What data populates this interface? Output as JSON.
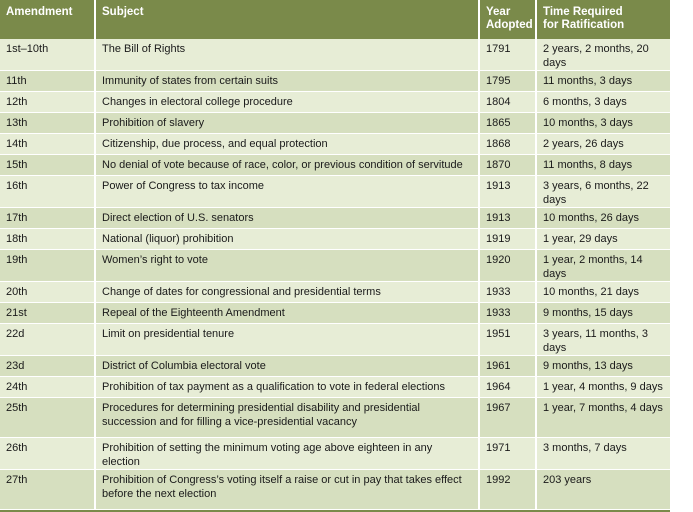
{
  "header": {
    "amendment": "Amendment",
    "subject": "Subject",
    "year_line1": "Year",
    "year_line2": "Adopted",
    "time_line1": "Time Required",
    "time_line2": "for Ratification"
  },
  "rows": [
    {
      "amendment": "1st–10th",
      "subject": "The Bill of Rights",
      "year": "1791",
      "time": "2 years, 2 months, 20 days"
    },
    {
      "amendment": "11th",
      "subject": "Immunity of states from certain suits",
      "year": "1795",
      "time": "11 months, 3 days"
    },
    {
      "amendment": "12th",
      "subject": "Changes in electoral college procedure",
      "year": "1804",
      "time": "6 months, 3 days"
    },
    {
      "amendment": "13th",
      "subject": "Prohibition of slavery",
      "year": "1865",
      "time": "10 months, 3 days"
    },
    {
      "amendment": "14th",
      "subject": "Citizenship, due process, and equal protection",
      "year": "1868",
      "time": "2 years, 26 days"
    },
    {
      "amendment": "15th",
      "subject": "No denial of vote because of race, color, or previous condition of servitude",
      "year": "1870",
      "time": "11 months, 8 days"
    },
    {
      "amendment": "16th",
      "subject": "Power of Congress to tax income",
      "year": "1913",
      "time": "3 years, 6 months, 22 days"
    },
    {
      "amendment": "17th",
      "subject": "Direct election of U.S. senators",
      "year": "1913",
      "time": "10 months, 26 days"
    },
    {
      "amendment": "18th",
      "subject": "National (liquor) prohibition",
      "year": "1919",
      "time": "1 year, 29 days"
    },
    {
      "amendment": "19th",
      "subject": "Women’s right to vote",
      "year": "1920",
      "time": "1 year, 2 months, 14 days"
    },
    {
      "amendment": "20th",
      "subject": "Change of dates for congressional and presidential terms",
      "year": "1933",
      "time": "10 months, 21 days"
    },
    {
      "amendment": "21st",
      "subject": "Repeal of the Eighteenth Amendment",
      "year": "1933",
      "time": "9 months, 15 days"
    },
    {
      "amendment": "22d",
      "subject": "Limit on presidential tenure",
      "year": "1951",
      "time": "3 years, 11 months, 3 days"
    },
    {
      "amendment": "23d",
      "subject": "District of Columbia electoral vote",
      "year": "1961",
      "time": "9 months, 13 days"
    },
    {
      "amendment": "24th",
      "subject": "Prohibition of tax payment as a qualification to vote in federal elections",
      "year": "1964",
      "time": "1 year, 4 months, 9 days"
    },
    {
      "amendment": "25th",
      "subject": "Procedures for determining presidential disability and presidential succession and for filling a vice-presidential vacancy",
      "year": "1967",
      "time": "1 year, 7 months, 4 days"
    },
    {
      "amendment": "26th",
      "subject": "Prohibition of setting the minimum voting age above eighteen in any election",
      "year": "1971",
      "time": "3 months, 7 days"
    },
    {
      "amendment": "27th",
      "subject": "Prohibition of Congress’s voting itself a raise or cut in pay that takes effect before the next election",
      "year": "1992",
      "time": "203 years"
    }
  ],
  "colors": {
    "header_bg": "#7a8a4a",
    "row_light": "#e7edd6",
    "row_dark": "#d6dfbf"
  }
}
